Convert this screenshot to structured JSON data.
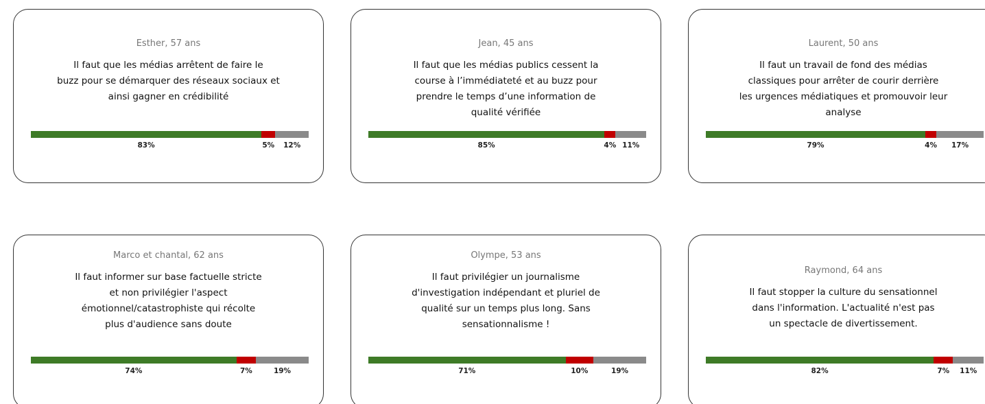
{
  "colors": [
    "#3e7b27",
    "#c00000",
    "#8a8a8a"
  ],
  "cards": [
    {
      "author": "Esther, 57 ans",
      "quote_lines": [
        "Il faut que les médias arrêtent de faire le",
        "buzz pour se démarquer des réseaux sociaux et",
        "ainsi gagner en crédibilité"
      ],
      "values": [
        83,
        5,
        12
      ],
      "value_labels": [
        "83%",
        "5%",
        "12%"
      ]
    },
    {
      "author": "Jean, 45 ans",
      "quote_lines": [
        "Il faut que les médias publics cessent la",
        "course à l’immédiateté et au buzz pour",
        "prendre le temps d’une information de",
        "qualité vérifiée"
      ],
      "values": [
        85,
        4,
        11
      ],
      "value_labels": [
        "85%",
        "4%",
        "11%"
      ]
    },
    {
      "author": "Laurent, 50 ans",
      "quote_lines": [
        "Il faut un travail de fond des médias",
        "classiques pour arrêter de courir derrière",
        "les urgences médiatiques et promouvoir leur",
        "analyse"
      ],
      "values": [
        79,
        4,
        17
      ],
      "value_labels": [
        "79%",
        "4%",
        "17%"
      ]
    },
    {
      "author": "Marco et chantal, 62 ans",
      "quote_lines": [
        "Il faut informer sur base factuelle stricte",
        "et non privilégier l'aspect",
        "émotionnel/catastrophiste qui récolte",
        "plus d'audience sans doute"
      ],
      "values": [
        74,
        7,
        19
      ],
      "value_labels": [
        "74%",
        "7%",
        "19%"
      ]
    },
    {
      "author": "Olympe, 53 ans",
      "quote_lines": [
        "Il faut privilégier un journalisme",
        "d'investigation indépendant et pluriel de",
        "qualité sur un temps plus long. Sans",
        "sensationnalisme !"
      ],
      "values": [
        71,
        10,
        19
      ],
      "value_labels": [
        "71%",
        "10%",
        "19%"
      ]
    },
    {
      "author": "Raymond, 64 ans",
      "quote_lines": [
        "Il faut stopper la culture du sensationnel",
        "dans l'information. L'actualité n'est pas",
        "un spectacle de divertissement."
      ],
      "values": [
        82,
        7,
        11
      ],
      "value_labels": [
        "82%",
        "7%",
        "11%"
      ]
    }
  ]
}
